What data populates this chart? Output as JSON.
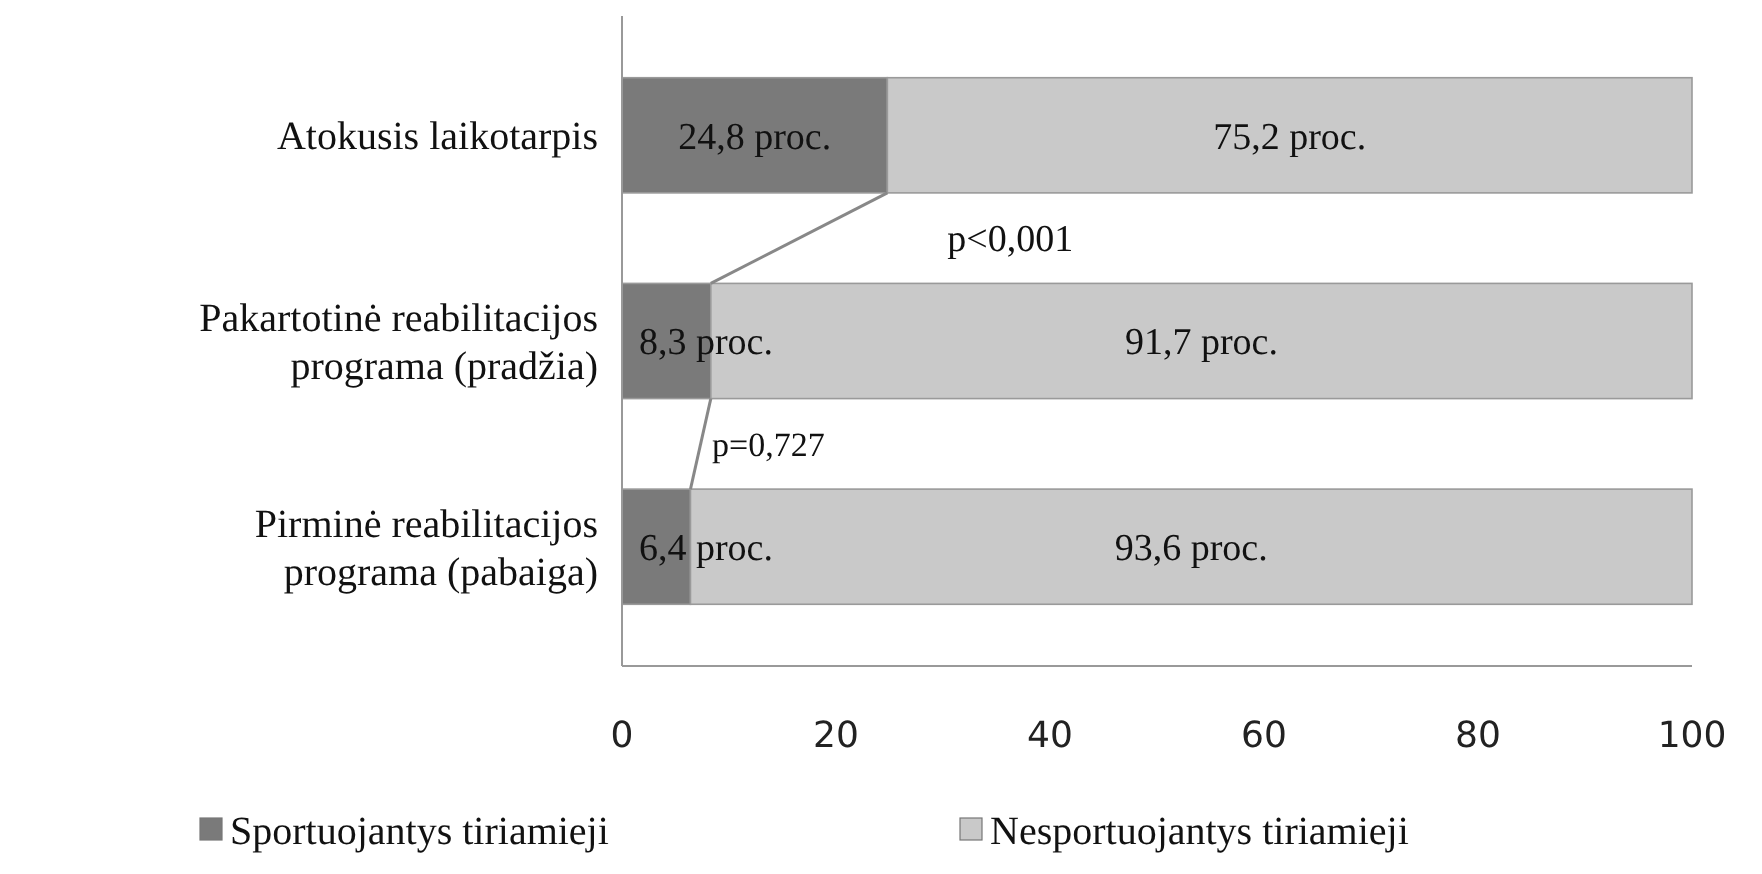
{
  "chart_data": {
    "type": "bar",
    "orientation": "horizontal",
    "stacked": true,
    "categories": [
      "Atokusis laikotarpis",
      "Pakartotinė reabilitacijos programa (pradžia)",
      "Pirminė reabilitacijos programa (pabaiga)"
    ],
    "series": [
      {
        "name": "Sportuojantys tiriamieji",
        "color": "#7a7a7a",
        "values": [
          24.8,
          8.3,
          6.4
        ],
        "value_labels": [
          "24,8 proc.",
          "8,3 proc.",
          "6,4 proc."
        ]
      },
      {
        "name": "Nesportuojantys tiriamieji",
        "color": "#c9c9c9",
        "values": [
          75.2,
          91.7,
          93.6
        ],
        "value_labels": [
          "75,2 proc.",
          "91,7 proc.",
          "93,6 proc."
        ]
      }
    ],
    "xlim": [
      0,
      100
    ],
    "xticks": [
      0,
      20,
      40,
      60,
      80,
      100
    ],
    "annotations": [
      "p<0,001",
      "p=0,727"
    ],
    "legend": "bottom",
    "grid": false
  }
}
